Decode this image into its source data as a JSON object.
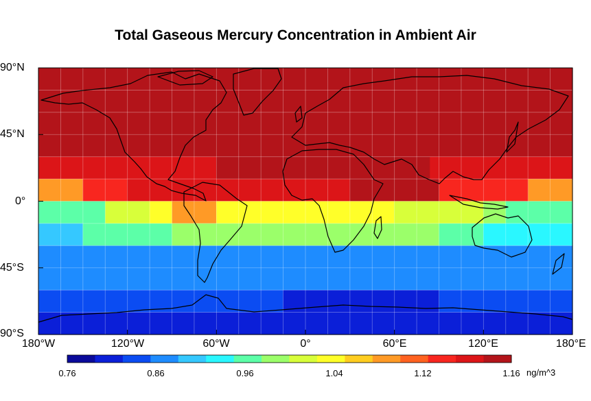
{
  "title": "Total Gaseous Mercury Concentration in Ambient Air",
  "lat_labels": [
    "90°N",
    "45°N",
    "0°",
    "45°S",
    "90°S"
  ],
  "lon_labels": [
    "180°W",
    "120°W",
    "60°W",
    "0°",
    "60°E",
    "120°E",
    "180°E"
  ],
  "colorbar": {
    "min": 0.76,
    "max": 1.16,
    "tick_labels": [
      "0.76",
      "0.86",
      "0.96",
      "1.04",
      "1.12",
      "1.16"
    ],
    "unit": "ng/m^3",
    "colors": [
      "#0a0a9a",
      "#0b1fd8",
      "#0b4cf2",
      "#1e8cff",
      "#35c8ff",
      "#2af7ff",
      "#5cffa8",
      "#9bff6a",
      "#d8ff3a",
      "#ffff29",
      "#ffcd20",
      "#ff9a26",
      "#ff6220",
      "#f8261f",
      "#dc1518",
      "#b3141a"
    ]
  },
  "bands": [
    {
      "lat": "90N-75N",
      "values": [
        1.14
      ]
    },
    {
      "lat": "75N-60N",
      "values": [
        1.14
      ]
    },
    {
      "lat": "60N-45N",
      "values": [
        1.14
      ]
    },
    {
      "lat": "45N-30N",
      "values": [
        1.15,
        1.14,
        1.15
      ]
    },
    {
      "lat": "30N-15N",
      "values": [
        1.13,
        1.12,
        1.14,
        1.13
      ]
    },
    {
      "lat": "15N-0",
      "values": [
        1.05,
        1.1,
        1.11,
        1.13,
        1.11,
        1.14,
        1.1,
        1.05
      ]
    },
    {
      "lat": "0-15S",
      "values": [
        0.93,
        0.96,
        0.99,
        1.04,
        1.0,
        0.99,
        0.98,
        0.95,
        0.93
      ]
    },
    {
      "lat": "15S-30S",
      "values": [
        0.88,
        0.93,
        0.95,
        0.93,
        0.89
      ]
    },
    {
      "lat": "30S-45S",
      "values": [
        0.85
      ]
    },
    {
      "lat": "45S-60S",
      "values": [
        0.84
      ]
    },
    {
      "lat": "60S-75S",
      "values": [
        0.82,
        0.8,
        0.82
      ]
    },
    {
      "lat": "75S-90S",
      "values": [
        0.8
      ]
    }
  ]
}
